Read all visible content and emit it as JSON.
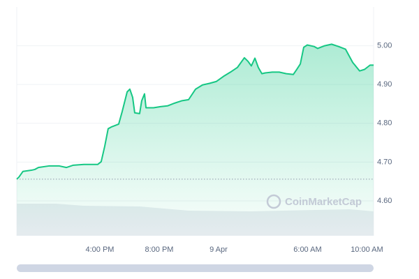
{
  "chart_data": {
    "type": "line",
    "watermark": "CoinMarketCap",
    "color": "#16c784",
    "x": [
      10.4,
      10.54,
      10.82,
      11.39,
      11.62,
      11.86,
      12.56,
      13.27,
      13.74,
      14.21,
      14.92,
      15.86,
      16.09,
      16.33,
      16.56,
      16.8,
      17.27,
      17.51,
      17.84,
      18.02,
      18.21,
      18.35,
      18.68,
      18.82,
      19.01,
      19.11,
      19.62,
      20.09,
      20.56,
      21.04,
      21.51,
      21.98,
      22.45,
      22.92,
      23.39,
      23.86,
      24.33,
      24.8,
      25.27,
      25.74,
      25.98,
      26.21,
      26.45,
      26.68,
      26.92,
      27.15,
      27.62,
      28.09,
      28.56,
      29.04,
      29.27,
      29.51,
      29.74,
      29.98,
      30.45,
      30.68,
      31.15,
      31.62,
      32.09,
      32.56,
      33.04,
      33.51,
      33.84,
      34.21,
      34.45
    ],
    "values": [
      4.656,
      4.661,
      4.676,
      4.679,
      4.681,
      4.686,
      4.69,
      4.69,
      4.686,
      4.692,
      4.694,
      4.694,
      4.701,
      4.741,
      4.786,
      4.791,
      4.798,
      4.831,
      4.881,
      4.888,
      4.867,
      4.827,
      4.825,
      4.858,
      4.876,
      4.84,
      4.84,
      4.843,
      4.845,
      4.852,
      4.858,
      4.861,
      4.888,
      4.899,
      4.903,
      4.908,
      4.921,
      4.932,
      4.944,
      4.969,
      4.96,
      4.948,
      4.968,
      4.944,
      4.928,
      4.93,
      4.932,
      4.932,
      4.928,
      4.926,
      4.939,
      4.953,
      4.996,
      5.002,
      4.998,
      4.993,
      5.0,
      5.004,
      4.998,
      4.991,
      4.957,
      4.935,
      4.939,
      4.95,
      4.95
    ],
    "reference": 4.656,
    "xlim": [
      10.4,
      34.45
    ],
    "xticks": [
      {
        "value": 16,
        "label": "4:00 PM"
      },
      {
        "value": 20,
        "label": "8:00 PM"
      },
      {
        "value": 24,
        "label": "9 Apr"
      },
      {
        "value": 30,
        "label": "6:00 AM"
      },
      {
        "value": 34,
        "label": "10:00 AM"
      }
    ],
    "ylim": [
      4.51,
      5.1
    ],
    "yticks": [
      {
        "value": 4.6,
        "label": "4.60"
      },
      {
        "value": 4.7,
        "label": "4.70"
      },
      {
        "value": 4.8,
        "label": "4.80"
      },
      {
        "value": 4.9,
        "label": "4.90"
      },
      {
        "value": 5.0,
        "label": "5.00"
      }
    ],
    "grid": true
  }
}
